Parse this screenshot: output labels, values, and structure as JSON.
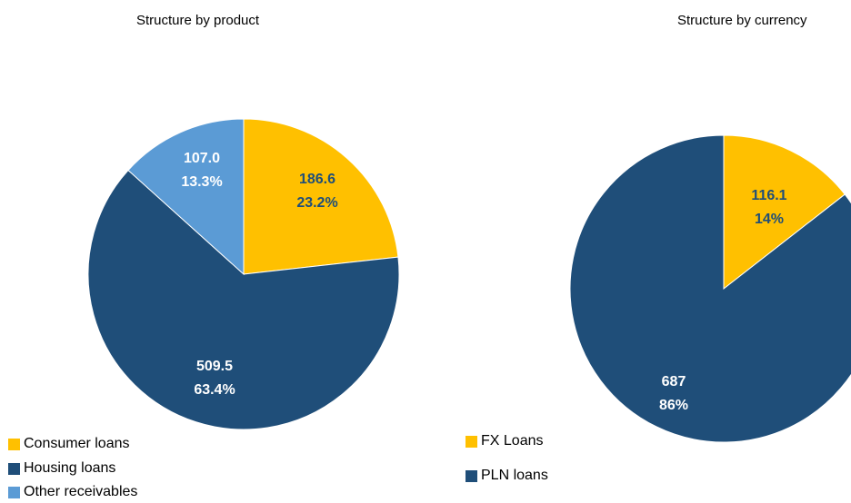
{
  "colors": {
    "yellow": "#FFC000",
    "navy": "#1F4E79",
    "lightblue": "#5B9BD5"
  },
  "chart_data": [
    {
      "type": "pie",
      "title": "Structure by product",
      "slices": [
        {
          "name": "Consumer loans",
          "value": 186.6,
          "percent": "23.2%",
          "label_value": "186.6",
          "color": "#FFC000",
          "label_color": "#1F4E79"
        },
        {
          "name": "Housing loans",
          "value": 509.5,
          "percent": "63.4%",
          "label_value": "509.5",
          "color": "#1F4E79",
          "label_color": "#ffffff"
        },
        {
          "name": "Other receivables",
          "value": 107.0,
          "percent": "13.3%",
          "label_value": "107.0",
          "color": "#5B9BD5",
          "label_color": "#ffffff"
        }
      ],
      "legend": [
        "Consumer loans",
        "Housing loans",
        "Other receivables"
      ]
    },
    {
      "type": "pie",
      "title": "Structure by currency",
      "slices": [
        {
          "name": "FX Loans",
          "value": 116.1,
          "percent": "14%",
          "label_value": "116.1",
          "color": "#FFC000",
          "label_color": "#1F4E79"
        },
        {
          "name": "PLN loans",
          "value": 687,
          "percent": "86%",
          "label_value": "687",
          "color": "#1F4E79",
          "label_color": "#ffffff"
        }
      ],
      "legend": [
        "FX Loans",
        "PLN loans"
      ]
    }
  ]
}
